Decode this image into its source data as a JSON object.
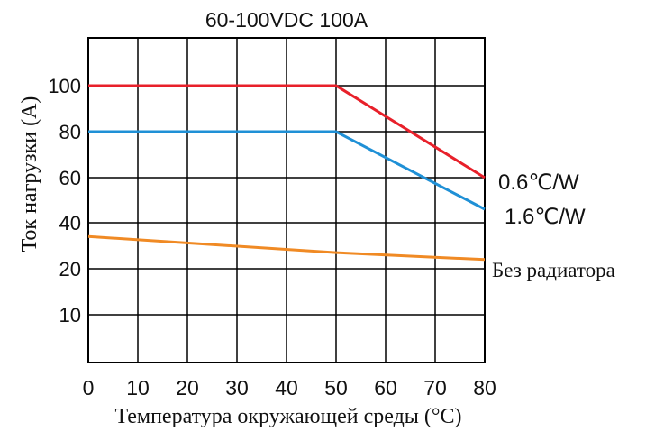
{
  "chart_data": {
    "type": "line",
    "title": "60-100VDC 100A",
    "xlabel": "Температура окружающей среды (°C)",
    "ylabel": "Ток нагрузки (A)",
    "x_ticks": [
      "0",
      "10",
      "20",
      "30",
      "40",
      "50",
      "60",
      "70",
      "80"
    ],
    "y_ticks": [
      "10",
      "20",
      "40",
      "60",
      "80",
      "100"
    ],
    "grid": true,
    "series": [
      {
        "name": "0.6℃/W",
        "color": "#e8202a",
        "x": [
          0,
          50,
          80
        ],
        "y": [
          100,
          100,
          60
        ]
      },
      {
        "name": "1.6℃/W",
        "color": "#1f90d6",
        "x": [
          0,
          50,
          80
        ],
        "y": [
          80,
          80,
          46
        ]
      },
      {
        "name": "Без радиатора",
        "color": "#f08a24",
        "x": [
          0,
          50,
          80
        ],
        "y": [
          34,
          27,
          24
        ]
      }
    ]
  }
}
